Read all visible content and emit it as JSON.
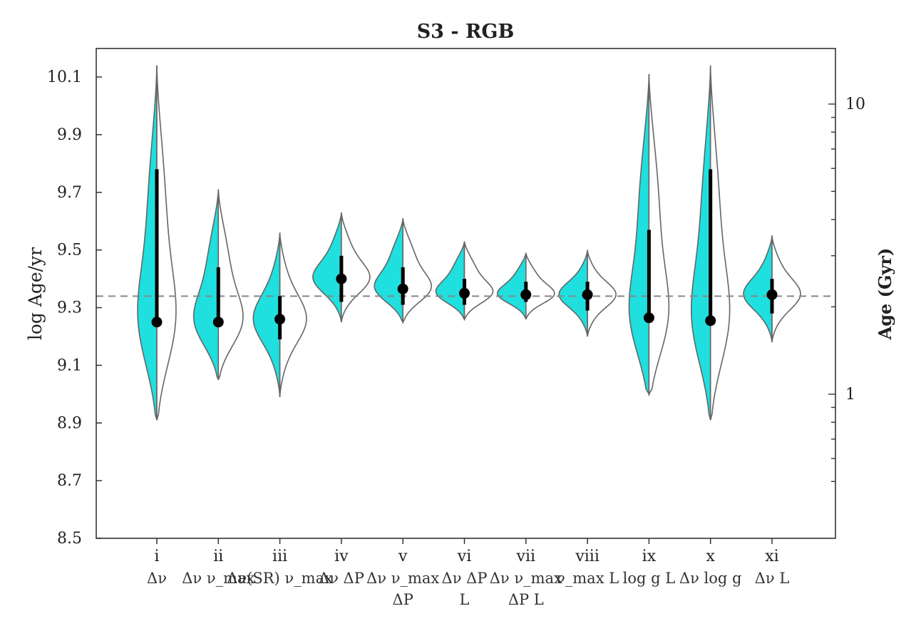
{
  "chart_data": {
    "type": "violin",
    "title": "S3 - RGB",
    "ylabel": "log Age/yr",
    "y2label": "Age (Gyr)",
    "ylim": [
      8.5,
      10.2
    ],
    "yticks": [
      "8.5",
      "8.7",
      "8.9",
      "9.1",
      "9.3",
      "9.5",
      "9.7",
      "9.9",
      "10.1"
    ],
    "y2ticks": [
      "1",
      "10"
    ],
    "y2_scale": "log",
    "reference_line": 9.34,
    "colors": {
      "left_half": "#1fdfdf",
      "right_half": "#ffffff",
      "outline": "#666666",
      "reference": "#888888"
    },
    "categories": [
      {
        "id": "i",
        "inputs": [
          "Δν"
        ],
        "median": 9.25,
        "q_low": 9.25,
        "q_high": 9.78,
        "min": 8.91,
        "max": 10.14
      },
      {
        "id": "ii",
        "inputs": [
          "Δν",
          "ν_max"
        ],
        "median": 9.25,
        "q_low": 9.25,
        "q_high": 9.44,
        "min": 9.05,
        "max": 9.71
      },
      {
        "id": "iii",
        "inputs": [
          "Δν(SR)",
          "ν_max"
        ],
        "median": 9.26,
        "q_low": 9.19,
        "q_high": 9.34,
        "min": 8.99,
        "max": 9.56
      },
      {
        "id": "iv",
        "inputs": [
          "Δν",
          "ΔP"
        ],
        "median": 9.4,
        "q_low": 9.32,
        "q_high": 9.48,
        "min": 9.25,
        "max": 9.63
      },
      {
        "id": "v",
        "inputs": [
          "Δν",
          "ν_max",
          "ΔP"
        ],
        "median": 9.365,
        "q_low": 9.31,
        "q_high": 9.44,
        "min": 9.25,
        "max": 9.61
      },
      {
        "id": "vi",
        "inputs": [
          "Δν",
          "ΔP",
          "L"
        ],
        "median": 9.35,
        "q_low": 9.31,
        "q_high": 9.4,
        "min": 9.26,
        "max": 9.53
      },
      {
        "id": "vii",
        "inputs": [
          "Δν",
          "ν_max",
          "ΔP",
          "L"
        ],
        "median": 9.345,
        "q_low": 9.32,
        "q_high": 9.39,
        "min": 9.26,
        "max": 9.49
      },
      {
        "id": "viii",
        "inputs": [
          "ν_max",
          "L"
        ],
        "median": 9.345,
        "q_low": 9.29,
        "q_high": 9.39,
        "min": 9.2,
        "max": 9.5
      },
      {
        "id": "ix",
        "inputs": [
          "log g",
          "L"
        ],
        "median": 9.265,
        "q_low": 9.25,
        "q_high": 9.57,
        "min": 9.0,
        "max": 10.11
      },
      {
        "id": "x",
        "inputs": [
          "Δν",
          "log g"
        ],
        "median": 9.255,
        "q_low": 9.25,
        "q_high": 9.78,
        "min": 8.91,
        "max": 10.14
      },
      {
        "id": "xi",
        "inputs": [
          "Δν",
          "L"
        ],
        "median": 9.345,
        "q_low": 9.28,
        "q_high": 9.4,
        "min": 9.18,
        "max": 9.55
      }
    ]
  }
}
